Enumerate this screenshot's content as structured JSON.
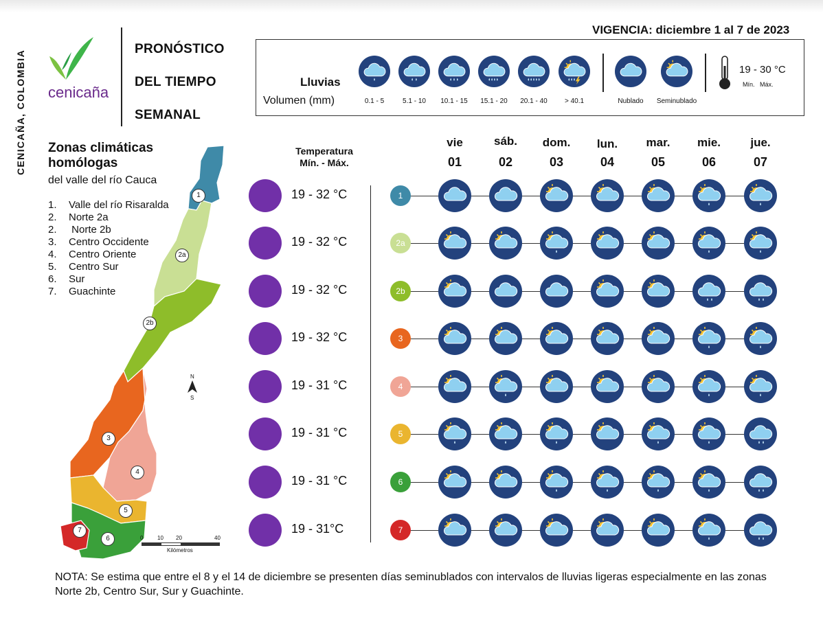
{
  "sidebar": {
    "text": "CENICAÑA, COLOMBIA"
  },
  "brand": {
    "name": "cenicaña"
  },
  "title": {
    "line1": "PRONÓSTICO",
    "line2": "DEL TIEMPO",
    "line3": "SEMANAL"
  },
  "vigencia": "VIGENCIA: diciembre 1 al 7 de 2023",
  "legend": {
    "lluvias_label": "Lluvias",
    "volumen_label": "Volumen (mm)",
    "rain_levels": [
      {
        "label": "0.1 - 5",
        "icon": "rain-1-icon"
      },
      {
        "label": "5.1 - 10",
        "icon": "rain-2-icon"
      },
      {
        "label": "10.1 - 15",
        "icon": "rain-3-icon"
      },
      {
        "label": "15.1 - 20",
        "icon": "rain-4-icon"
      },
      {
        "label": "20.1 - 40",
        "icon": "rain-5-icon"
      },
      {
        "label": "> 40.1",
        "icon": "storm-icon"
      }
    ],
    "sky": [
      {
        "label": "Nublado",
        "icon": "cloud-icon"
      },
      {
        "label": "Seminublado",
        "icon": "partly-cloudy-icon"
      }
    ],
    "temp_range_example": "19 - 30 °C",
    "min_label": "Mín.",
    "max_label": "Máx."
  },
  "zones": {
    "title_line1": "Zonas climáticas",
    "title_line2": "homólogas",
    "subtitle": "del valle del río Cauca",
    "list": [
      {
        "num": "1.",
        "name": "Valle del río Risaralda"
      },
      {
        "num": "2.",
        "name": "Norte 2a"
      },
      {
        "num": "2.",
        "name": " Norte 2b"
      },
      {
        "num": "3.",
        "name": "Centro Occidente"
      },
      {
        "num": "4.",
        "name": "Centro Oriente"
      },
      {
        "num": "5.",
        "name": "Centro Sur"
      },
      {
        "num": "6.",
        "name": "Sur"
      },
      {
        "num": "7.",
        "name": "Guachinte"
      }
    ]
  },
  "map": {
    "labels": [
      "1",
      "2a",
      "2b",
      "3",
      "4",
      "5",
      "6",
      "7"
    ],
    "north": "N",
    "south": "S",
    "scale_ticks": [
      "0",
      "10",
      "20",
      "40"
    ],
    "scale_unit": "Kilómetros"
  },
  "temp_header": {
    "line1": "Temperatura",
    "line2": "Mín. -  Máx."
  },
  "days": [
    {
      "name": "vie",
      "num": "01"
    },
    {
      "name": "sáb.",
      "num": "02"
    },
    {
      "name": "dom.",
      "num": "03"
    },
    {
      "name": "lun.",
      "num": "04"
    },
    {
      "name": "mar.",
      "num": "05"
    },
    {
      "name": "mie.",
      "num": "06"
    },
    {
      "name": "jue.",
      "num": "07"
    }
  ],
  "forecast": [
    {
      "zone": "1",
      "color": "#3f8aa8",
      "range": "19 - 32 °C",
      "icons": [
        "cloud-icon",
        "cloud-icon",
        "partly-cloudy-icon",
        "partly-cloudy-icon",
        "partly-cloudy-icon",
        "partly-cloudy-rain-icon",
        "partly-cloudy-rain-icon"
      ]
    },
    {
      "zone": "2a",
      "color": "#c9df94",
      "range": "19 - 32 °C",
      "icons": [
        "partly-cloudy-icon",
        "partly-cloudy-icon",
        "partly-cloudy-rain-icon",
        "partly-cloudy-icon",
        "partly-cloudy-icon",
        "partly-cloudy-rain-icon",
        "partly-cloudy-rain-icon"
      ]
    },
    {
      "zone": "2b",
      "color": "#8ebd2a",
      "range": "19 - 32 °C",
      "icons": [
        "partly-cloudy-icon",
        "cloud-icon",
        "cloud-icon",
        "partly-cloudy-icon",
        "partly-cloudy-icon",
        "cloud-rain-icon",
        "cloud-rain-icon"
      ]
    },
    {
      "zone": "3",
      "color": "#e8661f",
      "range": "19 - 32 °C",
      "icons": [
        "partly-cloudy-icon",
        "partly-cloudy-icon",
        "partly-cloudy-icon",
        "partly-cloudy-icon",
        "partly-cloudy-icon",
        "partly-cloudy-rain-icon",
        "partly-cloudy-rain-icon"
      ]
    },
    {
      "zone": "4",
      "color": "#f0a596",
      "range": "19 - 31 °C",
      "icons": [
        "partly-cloudy-icon",
        "partly-cloudy-rain-icon",
        "partly-cloudy-icon",
        "partly-cloudy-icon",
        "partly-cloudy-icon",
        "partly-cloudy-rain-icon",
        "partly-cloudy-rain-icon"
      ]
    },
    {
      "zone": "5",
      "color": "#eab52f",
      "range": "19 - 31 °C",
      "icons": [
        "partly-cloudy-rain-icon",
        "partly-cloudy-rain-icon",
        "partly-cloudy-rain-icon",
        "partly-cloudy-icon",
        "partly-cloudy-rain-icon",
        "partly-cloudy-rain-icon",
        "cloud-rain-icon"
      ]
    },
    {
      "zone": "6",
      "color": "#3aa03a",
      "range": "19 - 31 °C",
      "icons": [
        "partly-cloudy-icon",
        "partly-cloudy-icon",
        "partly-cloudy-rain-icon",
        "partly-cloudy-rain-icon",
        "partly-cloudy-rain-icon",
        "partly-cloudy-rain-icon",
        "cloud-rain-icon"
      ]
    },
    {
      "zone": "7",
      "color": "#d42828",
      "range": "19 - 31°C",
      "icons": [
        "partly-cloudy-icon",
        "partly-cloudy-icon",
        "partly-cloudy-icon",
        "partly-cloudy-icon",
        "partly-cloudy-icon",
        "partly-cloudy-rain-icon",
        "cloud-rain-icon"
      ]
    }
  ],
  "nota": "NOTA: Se estima que entre el 8 y el 14 de diciembre se presenten días seminublados con intervalos de lluvias ligeras especialmente en las zonas Norte 2b, Centro Sur, Sur y Guachinte."
}
